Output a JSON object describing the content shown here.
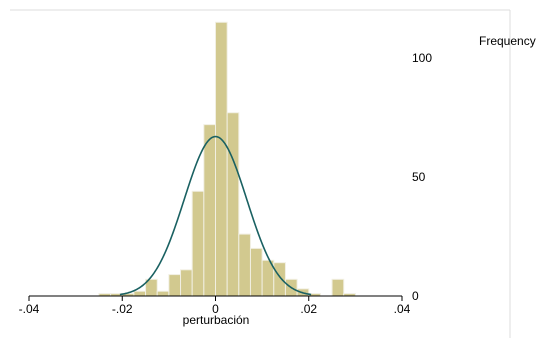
{
  "chart_data": {
    "type": "bar",
    "subtype": "histogram-with-normal-density",
    "title": "",
    "xlabel": "perturbación",
    "ylabel": "Frequency",
    "xlim": [
      -0.04,
      0.04
    ],
    "ylim": [
      0,
      118
    ],
    "y_axis_side": "right",
    "x_ticks": [
      {
        "value": -0.04,
        "label": "-.04"
      },
      {
        "value": -0.02,
        "label": "-.02"
      },
      {
        "value": 0,
        "label": "0"
      },
      {
        "value": 0.02,
        "label": ".02"
      },
      {
        "value": 0.04,
        "label": ".04"
      }
    ],
    "y_ticks": [
      {
        "value": 0,
        "label": "0"
      },
      {
        "value": 50,
        "label": "50"
      },
      {
        "value": 100,
        "label": "100"
      }
    ],
    "bin_width": 0.0025,
    "bins_start": [
      -0.0275,
      -0.025,
      -0.0225,
      -0.02,
      -0.0175,
      -0.015,
      -0.0125,
      -0.01,
      -0.0075,
      -0.005,
      -0.0025,
      0,
      0.0025,
      0.005,
      0.0075,
      0.01,
      0.0125,
      0.015,
      0.0175,
      0.02,
      0.0225,
      0.025,
      0.0275
    ],
    "values": [
      0,
      1,
      1,
      1,
      2,
      7,
      2,
      9,
      11,
      44,
      72,
      115,
      77,
      26,
      20,
      15,
      14,
      7,
      3,
      1,
      0,
      7,
      1
    ],
    "density_curve": {
      "mean": 0,
      "sd": 0.0067,
      "peak_frequency": 67
    },
    "colors": {
      "bar_fill": "#d2c98f",
      "bar_edge": "#f1efe2",
      "curve": "#1a6162",
      "axis": "#000000",
      "frame": "#dcdcdc"
    },
    "grid": false,
    "legend": "none"
  }
}
